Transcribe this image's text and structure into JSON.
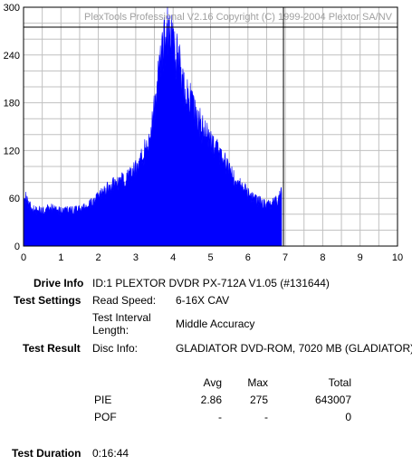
{
  "chart_data": {
    "type": "area",
    "title": "PlexTools Professional V2.16 Copyright (C) 1999-2004 Plextor SA/NV",
    "xlabel": "",
    "ylabel": "",
    "xlim": [
      0,
      10
    ],
    "ylim": [
      0,
      300
    ],
    "x_ticks": [
      "0",
      "1",
      "2",
      "3",
      "4",
      "5",
      "6",
      "7",
      "8",
      "9",
      "10"
    ],
    "y_ticks": [
      "0",
      "60",
      "120",
      "180",
      "240",
      "300"
    ],
    "grid": true,
    "fill_color": "#0000ff",
    "end_marker_x": 6.95,
    "max_line_y": 275,
    "series": [
      {
        "x": [
          0.0,
          0.1,
          0.2,
          0.3,
          0.4,
          0.5,
          0.6,
          0.7,
          0.8,
          0.9,
          1.0,
          1.1,
          1.2,
          1.3,
          1.4,
          1.5,
          1.6,
          1.7,
          1.8,
          1.9,
          2.0,
          2.1,
          2.2,
          2.3,
          2.4,
          2.5,
          2.6,
          2.7,
          2.8,
          2.9,
          3.0,
          3.1,
          3.2,
          3.3,
          3.4,
          3.5,
          3.6,
          3.7,
          3.8,
          3.9,
          4.0,
          4.1,
          4.2,
          4.3,
          4.4,
          4.5,
          4.6,
          4.7,
          4.8,
          4.9,
          5.0,
          5.1,
          5.2,
          5.3,
          5.4,
          5.5,
          5.6,
          5.7,
          5.8,
          5.9,
          6.0,
          6.1,
          6.2,
          6.3,
          6.4,
          6.5,
          6.6,
          6.7,
          6.8,
          6.9
        ],
        "values": [
          68,
          55,
          48,
          45,
          45,
          44,
          45,
          48,
          47,
          45,
          43,
          44,
          45,
          44,
          46,
          45,
          47,
          50,
          52,
          57,
          60,
          65,
          70,
          74,
          77,
          78,
          80,
          83,
          86,
          90,
          95,
          104,
          114,
          125,
          144,
          170,
          205,
          235,
          265,
          270,
          255,
          238,
          218,
          200,
          188,
          175,
          165,
          155,
          145,
          137,
          130,
          125,
          120,
          110,
          103,
          94,
          87,
          80,
          75,
          70,
          66,
          62,
          58,
          56,
          54,
          52,
          52,
          54,
          57,
          66
        ]
      }
    ]
  },
  "info": {
    "drive_info_label": "Drive Info",
    "drive_info_value": "ID:1 PLEXTOR DVDR PX-712A V1.05 (#131644)",
    "test_settings_label": "Test Settings",
    "read_speed_label": "Read Speed:",
    "read_speed_value": "6-16X CAV",
    "interval_label_1": "Test Interval",
    "interval_label_2": "Length:",
    "interval_value": "Middle Accuracy",
    "test_result_label": "Test Result",
    "disc_info_label": "Disc Info:",
    "disc_info_value": "GLADIATOR DVD-ROM, 7020 MB (GLADIATOR)",
    "col_avg": "Avg",
    "col_max": "Max",
    "col_total": "Total",
    "pie_label": "PIE",
    "pie_avg": "2.86",
    "pie_max": "275",
    "pie_total": "643007",
    "pof_label": "POF",
    "pof_avg": "-",
    "pof_max": "-",
    "pof_total": "0",
    "duration_label": "Test Duration",
    "duration_value": "0:16:44"
  }
}
